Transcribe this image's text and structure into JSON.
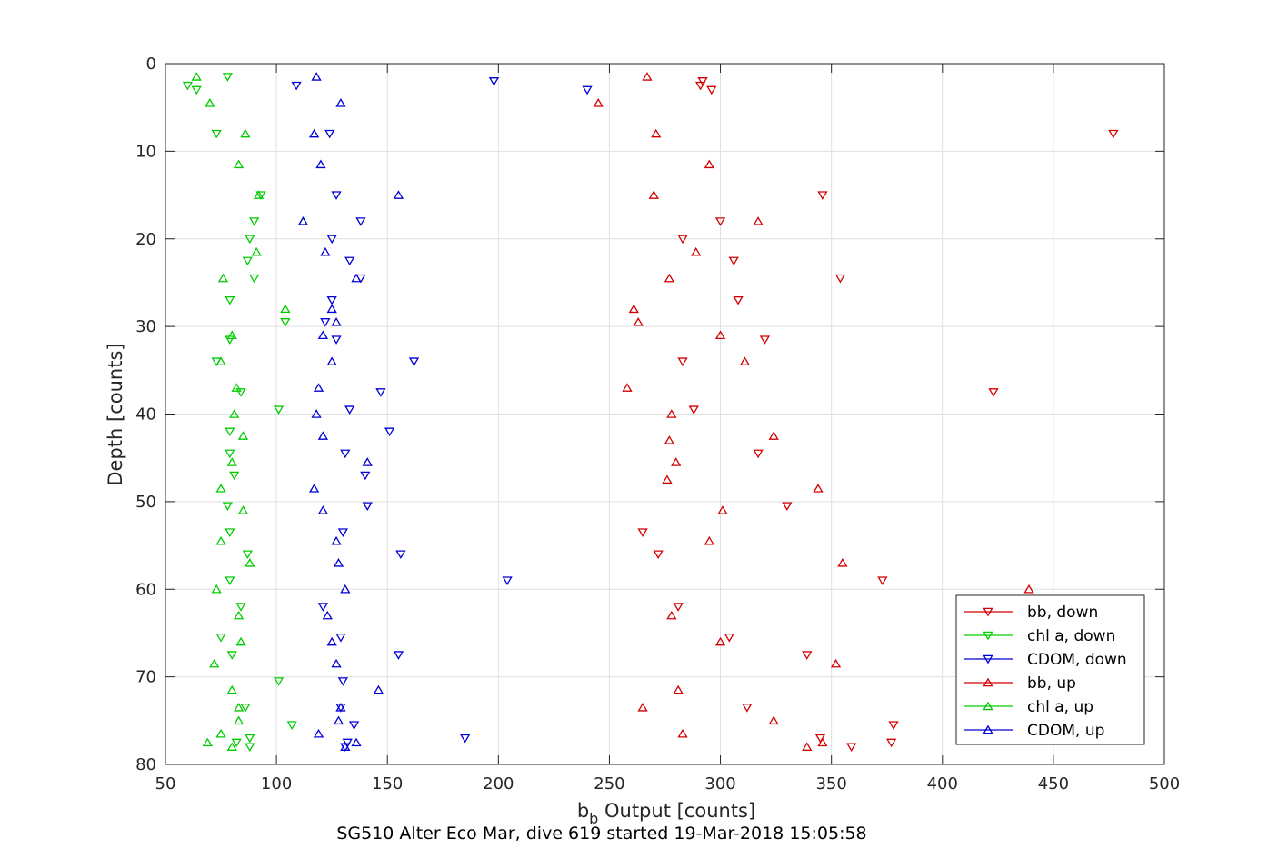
{
  "chart_data": {
    "type": "scatter",
    "title": "SG510 Alter Eco Mar, dive 619 started 19-Mar-2018 15:05:58",
    "xlabel_main": "b",
    "xlabel_sub": "b",
    "xlabel_rest": " Output [counts]",
    "ylabel": "Depth [counts]",
    "xlim": [
      50,
      500
    ],
    "ylim": [
      0,
      80
    ],
    "y_reversed": true,
    "grid": true,
    "legend_position": "lower-right",
    "xticks": [
      "50",
      "100",
      "150",
      "200",
      "250",
      "300",
      "350",
      "400",
      "450",
      "500"
    ],
    "yticks": [
      "0",
      "10",
      "20",
      "30",
      "40",
      "50",
      "60",
      "70",
      "80"
    ],
    "series": [
      {
        "name": "bb, down",
        "marker": "down-triangle",
        "color": "#d40000",
        "points": [
          [
            292,
            2
          ],
          [
            291,
            2.5
          ],
          [
            296,
            3
          ],
          [
            477,
            8
          ],
          [
            346,
            15
          ],
          [
            300,
            18
          ],
          [
            283,
            20
          ],
          [
            306,
            22.5
          ],
          [
            354,
            24.5
          ],
          [
            308,
            27
          ],
          [
            320,
            31.5
          ],
          [
            283,
            34
          ],
          [
            423,
            37.5
          ],
          [
            288,
            39.5
          ],
          [
            317,
            44.5
          ],
          [
            330,
            50.5
          ],
          [
            265,
            53.5
          ],
          [
            272,
            56
          ],
          [
            373,
            59
          ],
          [
            281,
            62
          ],
          [
            304,
            65.5
          ],
          [
            339,
            67.5
          ],
          [
            312,
            73.5
          ],
          [
            378,
            75.5
          ],
          [
            345,
            77
          ],
          [
            377,
            77.5
          ],
          [
            359,
            78
          ]
        ]
      },
      {
        "name": "chl a, down",
        "marker": "down-triangle",
        "color": "#00cc00",
        "points": [
          [
            60,
            2.5
          ],
          [
            64,
            3
          ],
          [
            78,
            1.5
          ],
          [
            73,
            8
          ],
          [
            93,
            15
          ],
          [
            90,
            18
          ],
          [
            88,
            20
          ],
          [
            87,
            22.5
          ],
          [
            90,
            24.5
          ],
          [
            79,
            27
          ],
          [
            104,
            29.5
          ],
          [
            79,
            31.5
          ],
          [
            73,
            34
          ],
          [
            84,
            37.5
          ],
          [
            101,
            39.5
          ],
          [
            79,
            42
          ],
          [
            79,
            44.5
          ],
          [
            81,
            47
          ],
          [
            78,
            50.5
          ],
          [
            79,
            53.5
          ],
          [
            87,
            56
          ],
          [
            79,
            59
          ],
          [
            84,
            62
          ],
          [
            75,
            65.5
          ],
          [
            80,
            67.5
          ],
          [
            101,
            70.5
          ],
          [
            86,
            73.5
          ],
          [
            107,
            75.5
          ],
          [
            88,
            77
          ],
          [
            82,
            77.5
          ],
          [
            88,
            78
          ]
        ]
      },
      {
        "name": "CDOM, down",
        "marker": "down-triangle",
        "color": "#0000d4",
        "points": [
          [
            198,
            2
          ],
          [
            109,
            2.5
          ],
          [
            240,
            3
          ],
          [
            124,
            8
          ],
          [
            127,
            15
          ],
          [
            138,
            18
          ],
          [
            125,
            20
          ],
          [
            133,
            22.5
          ],
          [
            138,
            24.5
          ],
          [
            125,
            27
          ],
          [
            122,
            29.5
          ],
          [
            127,
            31.5
          ],
          [
            162,
            34
          ],
          [
            147,
            37.5
          ],
          [
            133,
            39.5
          ],
          [
            151,
            42
          ],
          [
            131,
            44.5
          ],
          [
            140,
            47
          ],
          [
            141,
            50.5
          ],
          [
            130,
            53.5
          ],
          [
            156,
            56
          ],
          [
            204,
            59
          ],
          [
            121,
            62
          ],
          [
            129,
            65.5
          ],
          [
            155,
            67.5
          ],
          [
            130,
            70.5
          ],
          [
            129,
            73.5
          ],
          [
            135,
            75.5
          ],
          [
            185,
            77
          ],
          [
            132,
            77.5
          ],
          [
            131,
            78
          ]
        ]
      },
      {
        "name": "bb, up",
        "marker": "up-triangle",
        "color": "#d40000",
        "points": [
          [
            267,
            1.5
          ],
          [
            245,
            4.5
          ],
          [
            271,
            8
          ],
          [
            295,
            11.5
          ],
          [
            270,
            15
          ],
          [
            317,
            18
          ],
          [
            289,
            21.5
          ],
          [
            277,
            24.5
          ],
          [
            261,
            28
          ],
          [
            263,
            29.5
          ],
          [
            300,
            31
          ],
          [
            311,
            34
          ],
          [
            258,
            37
          ],
          [
            278,
            40
          ],
          [
            324,
            42.5
          ],
          [
            277,
            43
          ],
          [
            280,
            45.5
          ],
          [
            344,
            48.5
          ],
          [
            276,
            47.5
          ],
          [
            301,
            51
          ],
          [
            295,
            54.5
          ],
          [
            355,
            57
          ],
          [
            439,
            60
          ],
          [
            278,
            63
          ],
          [
            300,
            66
          ],
          [
            352,
            68.5
          ],
          [
            281,
            71.5
          ],
          [
            265,
            73.5
          ],
          [
            324,
            75
          ],
          [
            283,
            76.5
          ],
          [
            346,
            77.5
          ],
          [
            339,
            78
          ]
        ]
      },
      {
        "name": "chl a, up",
        "marker": "up-triangle",
        "color": "#00cc00",
        "points": [
          [
            64,
            1.5
          ],
          [
            70,
            4.5
          ],
          [
            86,
            8
          ],
          [
            83,
            11.5
          ],
          [
            92,
            15
          ],
          [
            112,
            18
          ],
          [
            91,
            21.5
          ],
          [
            76,
            24.5
          ],
          [
            104,
            28
          ],
          [
            80,
            31
          ],
          [
            75,
            34
          ],
          [
            82,
            37
          ],
          [
            81,
            40
          ],
          [
            85,
            42.5
          ],
          [
            80,
            45.5
          ],
          [
            75,
            48.5
          ],
          [
            85,
            51
          ],
          [
            75,
            54.5
          ],
          [
            88,
            57
          ],
          [
            73,
            60
          ],
          [
            83,
            63
          ],
          [
            84,
            66
          ],
          [
            72,
            68.5
          ],
          [
            80,
            71.5
          ],
          [
            83,
            73.5
          ],
          [
            83,
            75
          ],
          [
            75,
            76.5
          ],
          [
            69,
            77.5
          ],
          [
            80,
            78
          ]
        ]
      },
      {
        "name": "CDOM, up",
        "marker": "up-triangle",
        "color": "#0000d4",
        "points": [
          [
            118,
            1.5
          ],
          [
            129,
            4.5
          ],
          [
            117,
            8
          ],
          [
            120,
            11.5
          ],
          [
            155,
            15
          ],
          [
            112,
            18
          ],
          [
            122,
            21.5
          ],
          [
            136,
            24.5
          ],
          [
            125,
            28
          ],
          [
            127,
            29.5
          ],
          [
            121,
            31
          ],
          [
            125,
            34
          ],
          [
            119,
            37
          ],
          [
            118,
            40
          ],
          [
            121,
            42.5
          ],
          [
            141,
            45.5
          ],
          [
            117,
            48.5
          ],
          [
            121,
            51
          ],
          [
            127,
            54.5
          ],
          [
            128,
            57
          ],
          [
            131,
            60
          ],
          [
            123,
            63
          ],
          [
            125,
            66
          ],
          [
            127,
            68.5
          ],
          [
            146,
            71.5
          ],
          [
            129,
            73.5
          ],
          [
            128,
            75
          ],
          [
            119,
            76.5
          ],
          [
            136,
            77.5
          ],
          [
            131,
            78
          ]
        ]
      }
    ]
  }
}
